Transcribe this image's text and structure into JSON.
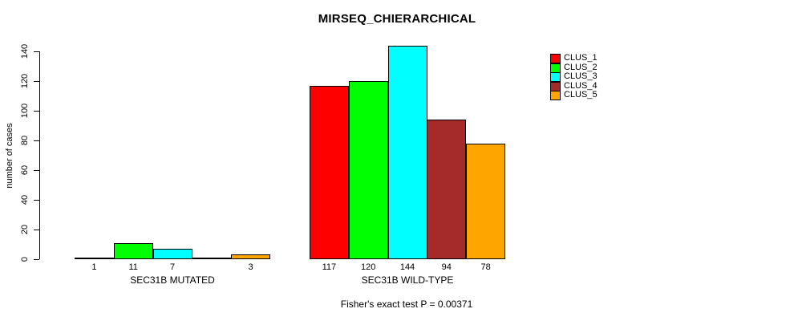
{
  "title": "MIRSEQ_CHIERARCHICAL",
  "footer": "Fisher's exact test P = 0.00371",
  "chart_data": {
    "type": "bar",
    "title": "MIRSEQ_CHIERARCHICAL",
    "xlabel": "",
    "ylabel": "number of cases",
    "ylim": [
      0,
      140
    ],
    "yticks": [
      0,
      20,
      40,
      60,
      80,
      100,
      120,
      140
    ],
    "grid": false,
    "legend_position": "top-right",
    "categories": [
      "SEC31B MUTATED",
      "SEC31B WILD-TYPE"
    ],
    "series": [
      {
        "name": "CLUS_1",
        "color": "#FF0000",
        "values": [
          1,
          117
        ]
      },
      {
        "name": "CLUS_2",
        "color": "#00FF00",
        "values": [
          11,
          120
        ]
      },
      {
        "name": "CLUS_3",
        "color": "#00FFFF",
        "values": [
          7,
          144
        ]
      },
      {
        "name": "CLUS_4",
        "color": "#A52A2A",
        "values": [
          0,
          94
        ]
      },
      {
        "name": "CLUS_5",
        "color": "#FFA500",
        "values": [
          3,
          78
        ]
      }
    ],
    "bar_labels": [
      [
        "1",
        "11",
        "7",
        "",
        "3"
      ],
      [
        "117",
        "120",
        "144",
        "94",
        "78"
      ]
    ],
    "annotation": "Fisher's exact test P = 0.00371"
  }
}
